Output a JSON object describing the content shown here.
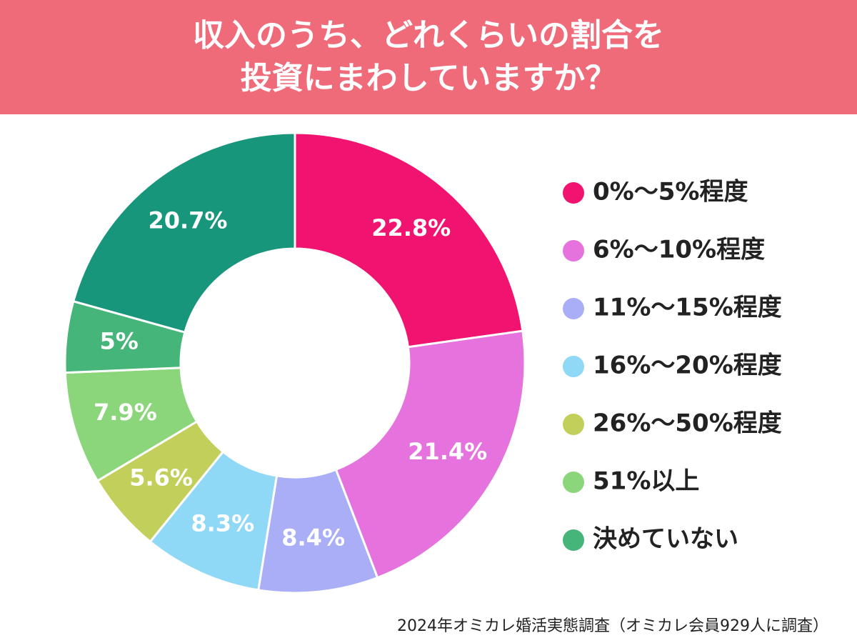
{
  "chart_data": {
    "type": "donut",
    "title": [
      "収入のうち、どれくらいの割合を",
      "投資にまわしていますか？"
    ],
    "categories": [
      "0%〜5%程度",
      "6%〜10%程度",
      "11%〜15%程度",
      "16%〜20%程度",
      "26%〜50%程度",
      "51%以上",
      "決めていない",
      null
    ],
    "values": [
      22.8,
      21.4,
      8.4,
      8.3,
      5.6,
      7.9,
      5,
      20.7
    ],
    "value_labels": [
      "22.8%",
      "21.4%",
      "8.4%",
      "8.3%",
      "5.6%",
      "7.9%",
      "5%",
      "20.7%"
    ],
    "colors": [
      "#f0136f",
      "#e673dd",
      "#a9aef7",
      "#8fd9f7",
      "#c3cf5b",
      "#8bd67a",
      "#46b57a",
      "#17967c"
    ],
    "source": "2024年オミカレ婚活実態調査（オミカレ会員929人に調査）"
  }
}
